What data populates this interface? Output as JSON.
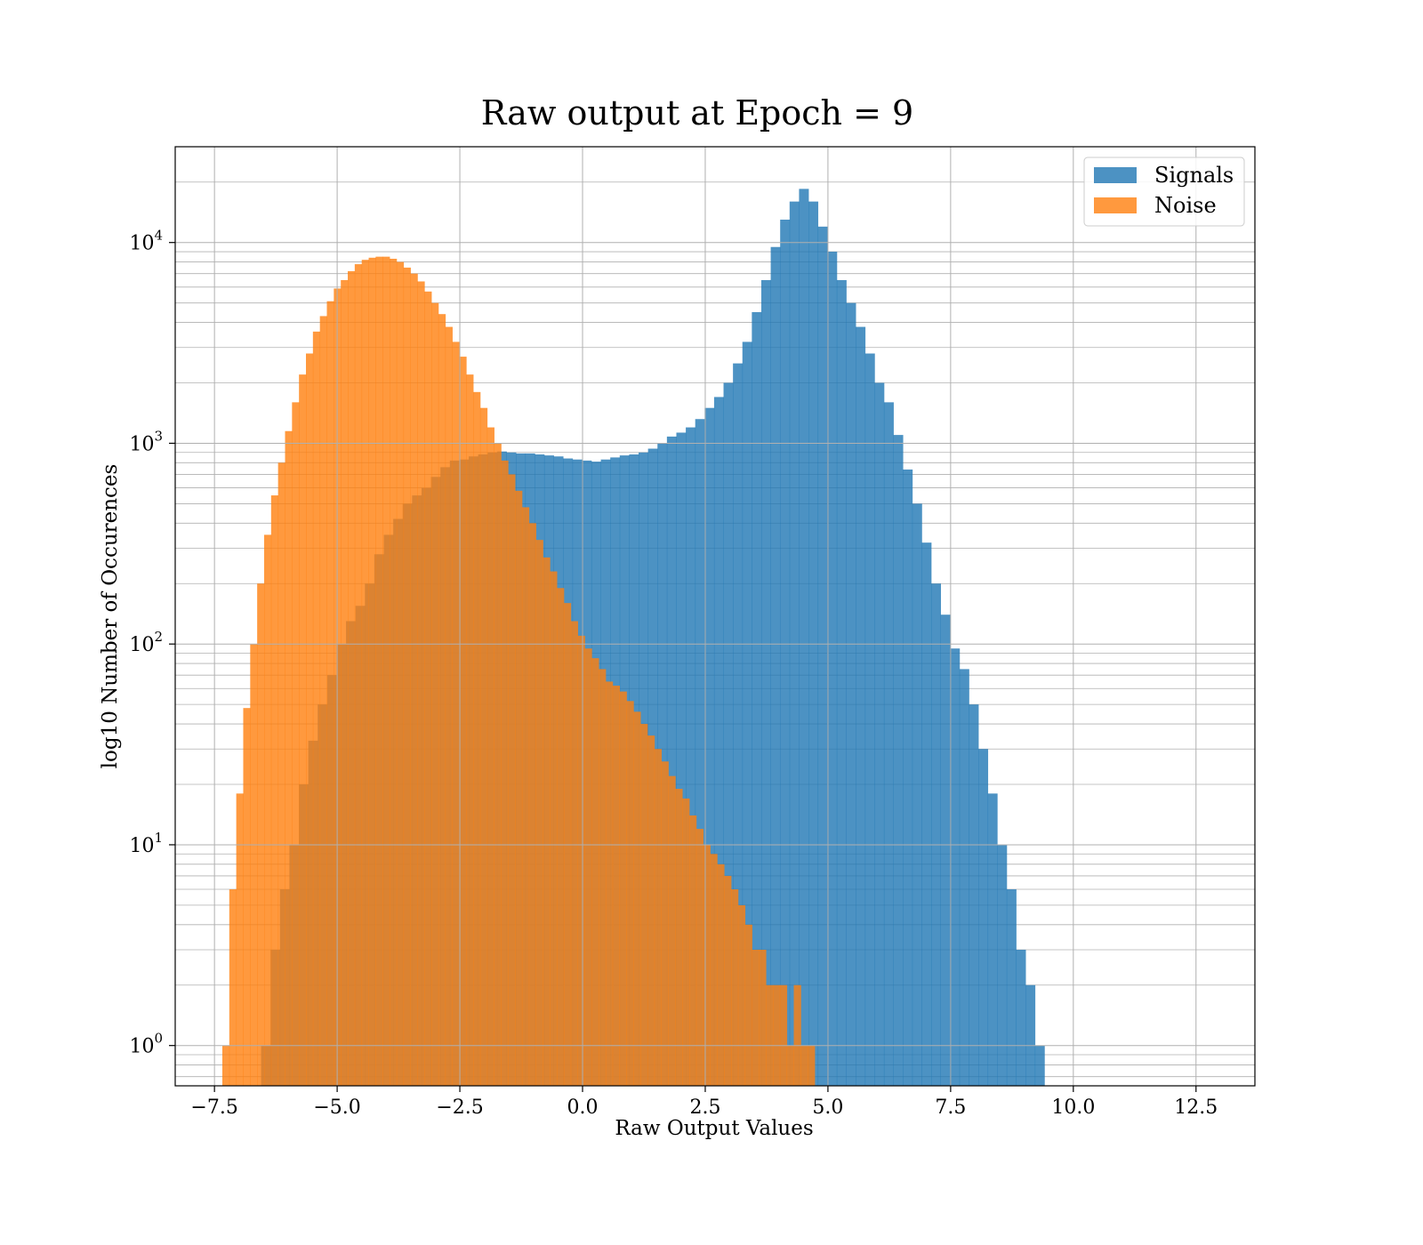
{
  "chart_data": {
    "type": "histogram",
    "title": "Raw output at Epoch = 9",
    "xlabel": "Raw Output Values",
    "ylabel": "log10 Number of Occurences",
    "xlim": [
      -8.3,
      13.7
    ],
    "ylim": [
      0.63,
      30000
    ],
    "yscale": "log",
    "grid": true,
    "legend_position": "top-right",
    "x_ticks": [
      "−7.5",
      "−5.0",
      "−2.5",
      "0.0",
      "2.5",
      "5.0",
      "7.5",
      "10.0",
      "12.5"
    ],
    "x_tick_values": [
      -7.5,
      -5.0,
      -2.5,
      0.0,
      2.5,
      5.0,
      7.5,
      10.0,
      12.5
    ],
    "y_ticks": [
      {
        "base": "10",
        "exp": "0",
        "value": 1
      },
      {
        "base": "10",
        "exp": "1",
        "value": 10
      },
      {
        "base": "10",
        "exp": "2",
        "value": 100
      },
      {
        "base": "10",
        "exp": "3",
        "value": 1000
      },
      {
        "base": "10",
        "exp": "4",
        "value": 10000
      }
    ],
    "series": [
      {
        "name": "Signals",
        "color": "#1f77b4",
        "alpha": 0.8,
        "bin_start": -6.55,
        "bin_width": 0.1923,
        "counts": [
          1,
          3,
          6,
          10,
          20,
          33,
          50,
          70,
          100,
          130,
          155,
          200,
          280,
          350,
          420,
          500,
          550,
          600,
          680,
          760,
          820,
          830,
          860,
          880,
          900,
          910,
          900,
          890,
          890,
          880,
          870,
          860,
          840,
          830,
          820,
          810,
          830,
          850,
          870,
          880,
          900,
          940,
          1000,
          1080,
          1130,
          1200,
          1320,
          1500,
          1700,
          2000,
          2500,
          3200,
          4500,
          6500,
          9500,
          13000,
          16000,
          18500,
          16000,
          12000,
          9000,
          6500,
          5000,
          3800,
          2800,
          2000,
          1600,
          1100,
          740,
          500,
          320,
          200,
          140,
          95,
          75,
          50,
          30,
          18,
          10,
          6,
          3,
          2,
          1
        ]
      },
      {
        "name": "Noise",
        "color": "#ff7f0e",
        "alpha": 0.8,
        "bin_start": -7.34,
        "bin_width": 0.142,
        "counts": [
          1,
          6,
          18,
          48,
          100,
          200,
          350,
          550,
          800,
          1150,
          1600,
          2200,
          2800,
          3600,
          4300,
          5100,
          5900,
          6500,
          7200,
          7800,
          8200,
          8400,
          8500,
          8500,
          8300,
          8000,
          7500,
          7000,
          6400,
          5700,
          5000,
          4400,
          3800,
          3200,
          2700,
          2200,
          1800,
          1500,
          1200,
          1000,
          820,
          700,
          580,
          480,
          400,
          330,
          270,
          230,
          190,
          160,
          130,
          110,
          95,
          85,
          75,
          65,
          62,
          58,
          52,
          46,
          40,
          35,
          30,
          26,
          22,
          19,
          17,
          14,
          12,
          10,
          9,
          8,
          7,
          6,
          5,
          4,
          3,
          3,
          2,
          2,
          2,
          1,
          2,
          1,
          1
        ]
      }
    ]
  },
  "legend": {
    "signals_label": "Signals",
    "noise_label": "Noise"
  }
}
